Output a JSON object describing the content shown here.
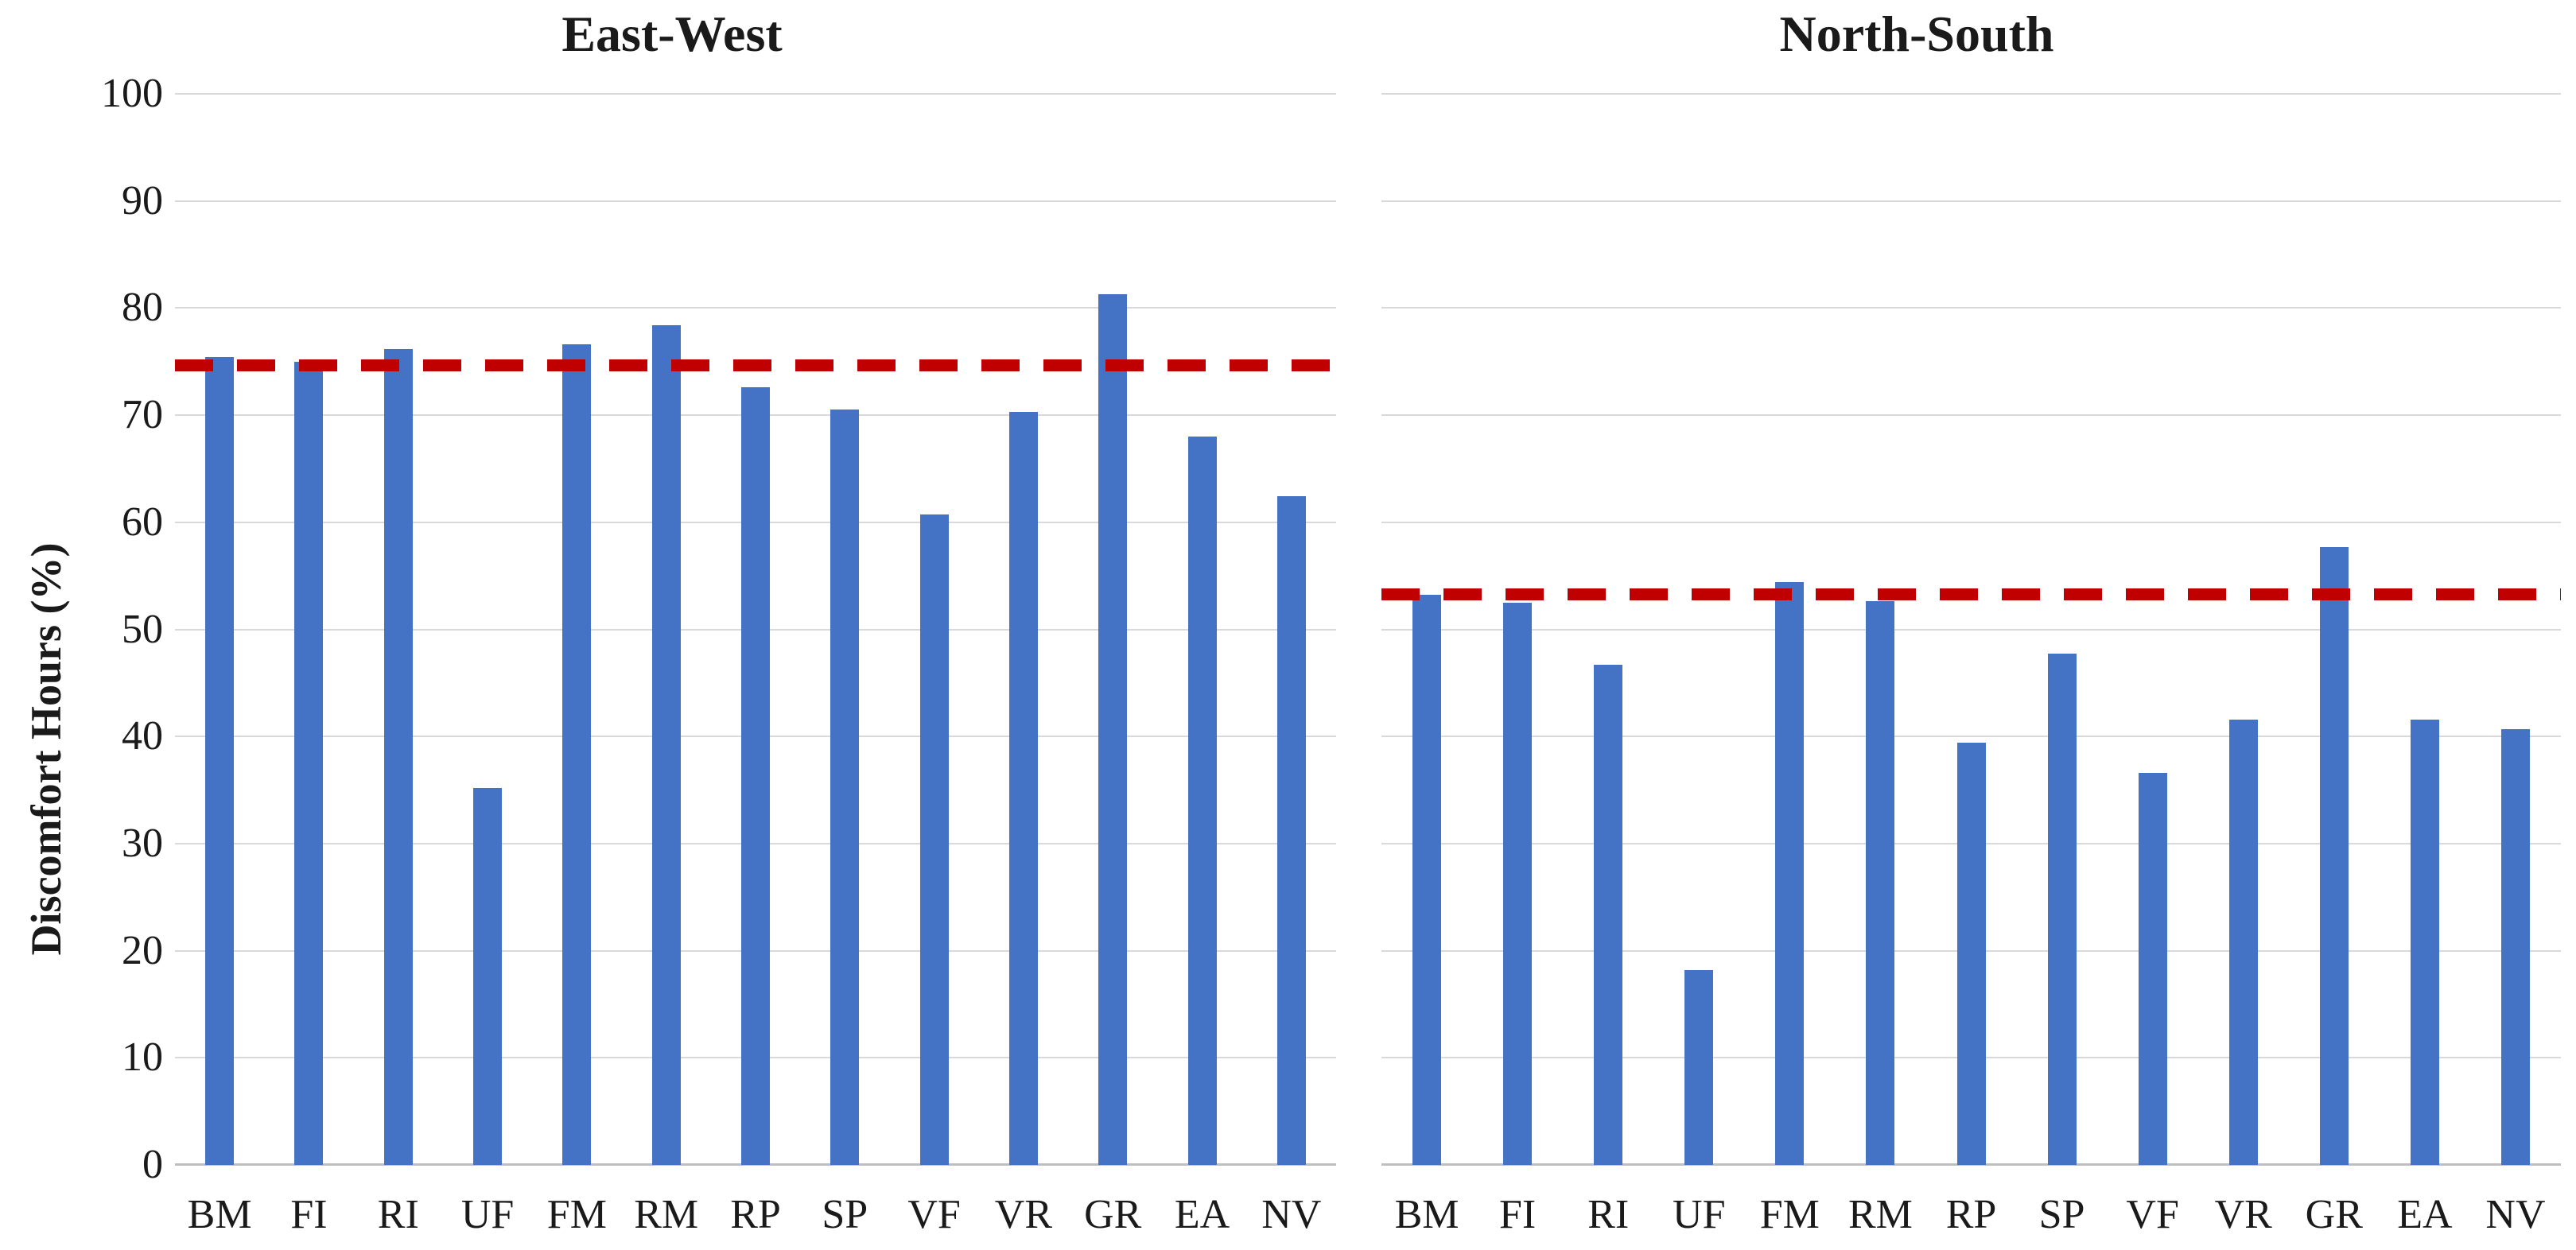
{
  "y_axis": {
    "label": "Discomfort Hours (%)",
    "ticks": [
      0,
      10,
      20,
      30,
      40,
      50,
      60,
      70,
      80,
      90,
      100
    ]
  },
  "colors": {
    "bar": "#4472C4",
    "threshold_line": "#C00000",
    "gridline": "#D9D9D9",
    "axis_line": "#BFBFBF",
    "text": "#1a1a1a"
  },
  "chart_data": [
    {
      "type": "bar",
      "title": "East-West",
      "categories": [
        "BM",
        "FI",
        "RI",
        "UF",
        "FM",
        "RM",
        "RP",
        "SP",
        "VF",
        "VR",
        "GR",
        "EA",
        "NV"
      ],
      "values": [
        75.4,
        75.0,
        76.2,
        35.2,
        76.6,
        78.4,
        72.6,
        70.5,
        60.7,
        70.3,
        81.3,
        68.0,
        62.4
      ],
      "threshold_line": 74.7,
      "xlabel": "",
      "ylabel": "Discomfort Hours (%)",
      "ylim": [
        0,
        100
      ],
      "grid": true,
      "legend": "none"
    },
    {
      "type": "bar",
      "title": "North-South",
      "categories": [
        "BM",
        "FI",
        "RI",
        "UF",
        "FM",
        "RM",
        "RP",
        "SP",
        "VF",
        "VR",
        "GR",
        "EA",
        "NV"
      ],
      "values": [
        53.2,
        52.5,
        46.7,
        18.2,
        54.4,
        52.6,
        39.4,
        47.7,
        36.6,
        41.6,
        57.7,
        41.6,
        40.7
      ],
      "threshold_line": 53.3,
      "xlabel": "",
      "ylabel": "Discomfort Hours (%)",
      "ylim": [
        0,
        100
      ],
      "grid": true,
      "legend": "none"
    }
  ]
}
